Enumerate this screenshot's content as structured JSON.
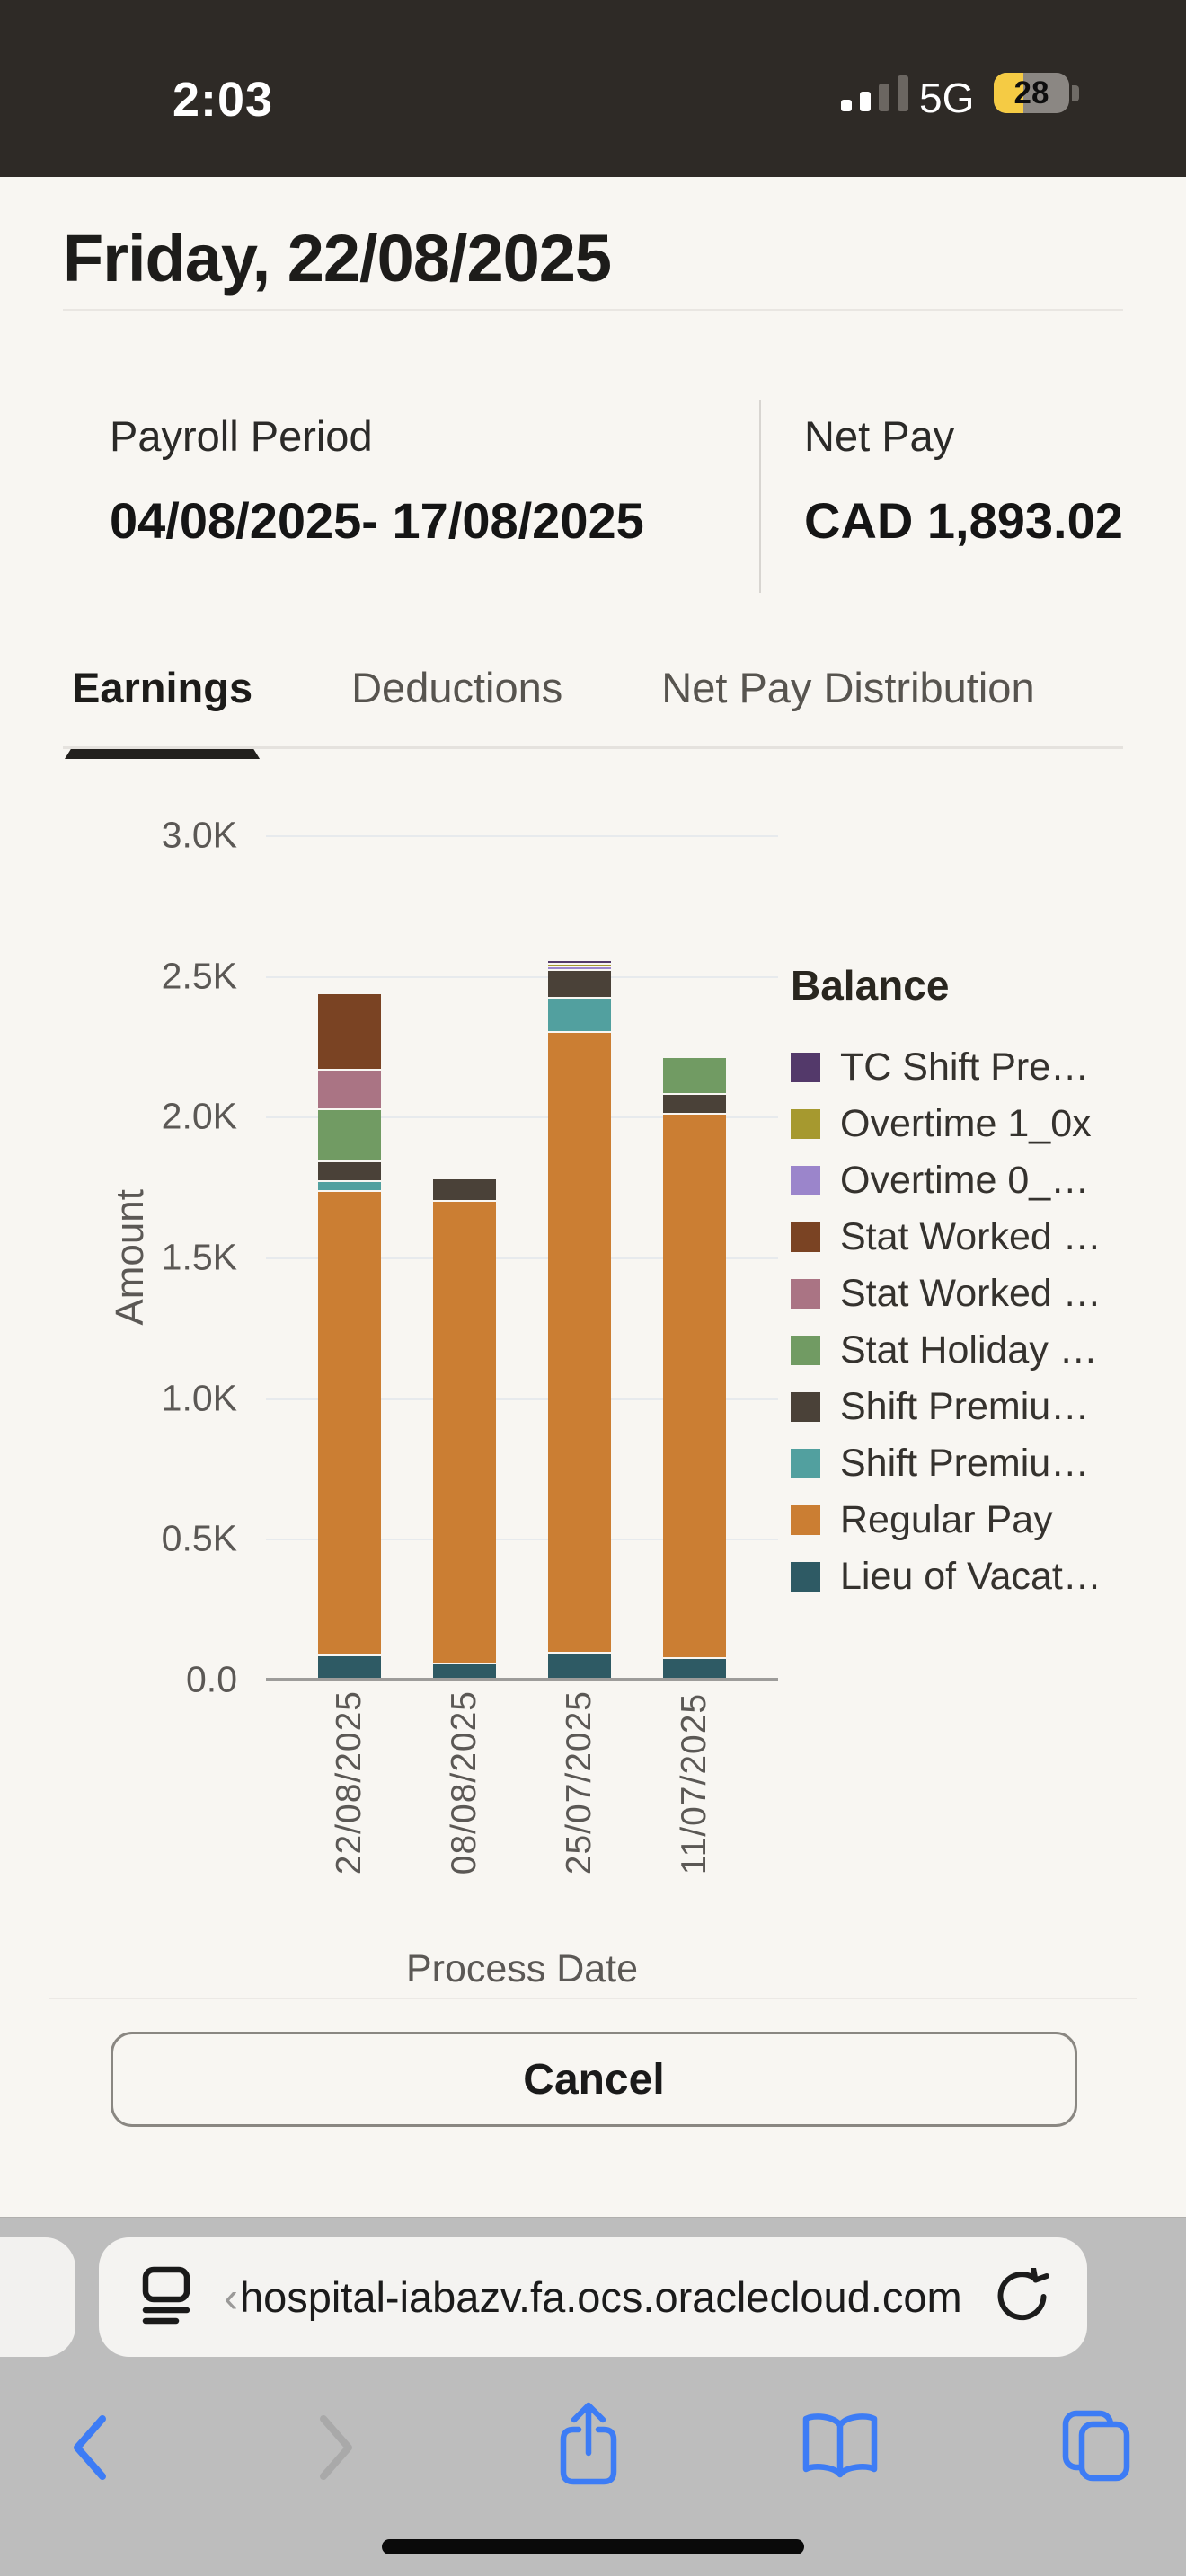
{
  "status_bar": {
    "time": "2:03",
    "network": "5G",
    "battery_percent": "28"
  },
  "header": {
    "title": "Friday, 22/08/2025"
  },
  "summary": {
    "payroll_period_label": "Payroll Period",
    "payroll_period_value": "04/08/2025- 17/08/2025",
    "net_pay_label": "Net Pay",
    "net_pay_value": "CAD 1,893.02"
  },
  "tabs": [
    {
      "label": "Earnings",
      "active": true
    },
    {
      "label": "Deductions",
      "active": false
    },
    {
      "label": "Net Pay Distribution",
      "active": false
    }
  ],
  "chart_data": {
    "type": "bar",
    "subtype": "stacked",
    "legend_title": "Balance",
    "legend_position": "right",
    "xlabel": "Process Date",
    "ylabel": "Amount",
    "ylim": [
      0,
      3000
    ],
    "yticks": [
      "3.0K",
      "2.5K",
      "2.0K",
      "1.5K",
      "1.0K",
      "0.5K",
      "0.0"
    ],
    "grid": true,
    "categories": [
      "22/08/2025",
      "08/08/2025",
      "25/07/2025",
      "11/07/2025"
    ],
    "series": [
      {
        "name": "TC Shift Pre…",
        "color": "#53396A",
        "values": [
          0,
          0,
          13,
          0
        ]
      },
      {
        "name": "Overtime 1_0x",
        "color": "#A6992F",
        "values": [
          0,
          0,
          12,
          0
        ]
      },
      {
        "name": "Overtime 0_…",
        "color": "#9B85CB",
        "values": [
          0,
          0,
          10,
          0
        ]
      },
      {
        "name": "Stat Worked …",
        "color": "#7A4323",
        "values": [
          270,
          0,
          0,
          0
        ]
      },
      {
        "name": "Stat Worked …",
        "color": "#AA7484",
        "values": [
          140,
          0,
          0,
          0
        ]
      },
      {
        "name": "Stat Holiday …",
        "color": "#719B63",
        "values": [
          185,
          0,
          0,
          130
        ]
      },
      {
        "name": "Shift Premiu…",
        "color": "#4A4138",
        "values": [
          70,
          80,
          100,
          70
        ]
      },
      {
        "name": "Shift Premiu…",
        "color": "#52A09F",
        "values": [
          35,
          0,
          120,
          0
        ]
      },
      {
        "name": "Regular Pay",
        "color": "#CB7E33",
        "values": [
          1650,
          1645,
          2205,
          1935
        ]
      },
      {
        "name": "Lieu of Vacat…",
        "color": "#2E5A64",
        "values": [
          90,
          60,
          100,
          80
        ]
      }
    ]
  },
  "cancel_button": {
    "label": "Cancel"
  },
  "browser": {
    "url_prefix": "‹",
    "url": "hospital-iabazv.fa.ocs.oraclecloud.com"
  }
}
